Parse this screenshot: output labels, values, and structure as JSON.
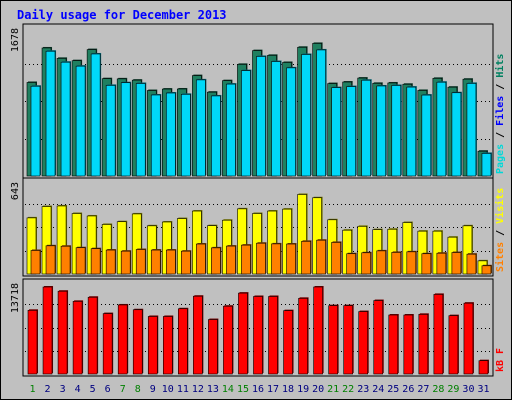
{
  "chart_data": [
    {
      "type": "bar",
      "title": "Daily usage for December 2013",
      "panel": "top",
      "categories": [
        "1",
        "2",
        "3",
        "4",
        "5",
        "6",
        "7",
        "8",
        "9",
        "10",
        "11",
        "12",
        "13",
        "14",
        "15",
        "16",
        "17",
        "18",
        "19",
        "20",
        "21",
        "22",
        "23",
        "24",
        "25",
        "26",
        "27",
        "28",
        "29",
        "30",
        "31"
      ],
      "weekend_days": [
        "1",
        "7",
        "8",
        "14",
        "15",
        "21",
        "22",
        "28",
        "29"
      ],
      "y_tick_label": "1678",
      "ylim": [
        0,
        1678
      ],
      "legend": [
        {
          "name": "Pages",
          "color": "#00d8d8"
        },
        {
          "name": "Files",
          "color": "#0000ff"
        },
        {
          "name": "Hits",
          "color": "#008060"
        }
      ],
      "series": [
        {
          "name": "Hits",
          "color": "#208060",
          "values": [
            1090,
            1492,
            1371,
            1344,
            1473,
            1134,
            1132,
            1117,
            996,
            1013,
            1014,
            1170,
            977,
            1111,
            1301,
            1461,
            1406,
            1323,
            1500,
            1545,
            1077,
            1095,
            1141,
            1080,
            1084,
            1069,
            997,
            1138,
            1035,
            1128,
            289
          ]
        },
        {
          "name": "Pages",
          "color": "#00d8f8",
          "values": [
            1046,
            1454,
            1326,
            1280,
            1422,
            1056,
            1087,
            1078,
            944,
            967,
            952,
            1120,
            933,
            1071,
            1228,
            1393,
            1334,
            1260,
            1416,
            1469,
            1030,
            1042,
            1116,
            1049,
            1055,
            1036,
            943,
            1093,
            970,
            1079,
            263
          ]
        }
      ]
    },
    {
      "type": "bar",
      "panel": "middle",
      "categories": [
        "1",
        "2",
        "3",
        "4",
        "5",
        "6",
        "7",
        "8",
        "9",
        "10",
        "11",
        "12",
        "13",
        "14",
        "15",
        "16",
        "17",
        "18",
        "19",
        "20",
        "21",
        "22",
        "23",
        "24",
        "25",
        "26",
        "27",
        "28",
        "29",
        "30",
        "31"
      ],
      "y_tick_label": "643",
      "ylim": [
        0,
        643
      ],
      "legend": [
        {
          "name": "Sites",
          "color": "#ff8000"
        },
        {
          "name": "Visits",
          "color": "#ffff00"
        }
      ],
      "series": [
        {
          "name": "Visits",
          "color": "#ffff00",
          "values": [
            410,
            493,
            497,
            442,
            424,
            362,
            382,
            439,
            352,
            380,
            405,
            460,
            353,
            393,
            476,
            442,
            460,
            474,
            581,
            557,
            396,
            320,
            348,
            324,
            327,
            376,
            313,
            313,
            269,
            352,
            96
          ]
        },
        {
          "name": "Sites",
          "color": "#ff8000",
          "values": [
            172,
            206,
            203,
            192,
            185,
            175,
            167,
            179,
            175,
            175,
            167,
            219,
            191,
            204,
            211,
            225,
            220,
            219,
            239,
            247,
            231,
            148,
            155,
            169,
            158,
            162,
            148,
            152,
            157,
            145,
            60
          ]
        }
      ]
    },
    {
      "type": "bar",
      "panel": "bottom",
      "categories": [
        "1",
        "2",
        "3",
        "4",
        "5",
        "6",
        "7",
        "8",
        "9",
        "10",
        "11",
        "12",
        "13",
        "14",
        "15",
        "16",
        "17",
        "18",
        "19",
        "20",
        "21",
        "22",
        "23",
        "24",
        "25",
        "26",
        "27",
        "28",
        "29",
        "30",
        "31"
      ],
      "y_tick_label": "13718",
      "ylim": [
        0,
        13718
      ],
      "legend": [
        {
          "name": "kB F",
          "color": "#ff0000"
        }
      ],
      "series": [
        {
          "name": "kB F",
          "color": "#ff0000",
          "values": [
            10045,
            13718,
            13055,
            11460,
            12104,
            9528,
            10890,
            10132,
            9072,
            9072,
            10286,
            12268,
            8587,
            10692,
            12754,
            12225,
            12225,
            9988,
            11932,
            13718,
            10778,
            10778,
            9843,
            11583,
            9302,
            9303,
            9411,
            12554,
            9202,
            11172,
            2100
          ]
        }
      ]
    }
  ]
}
